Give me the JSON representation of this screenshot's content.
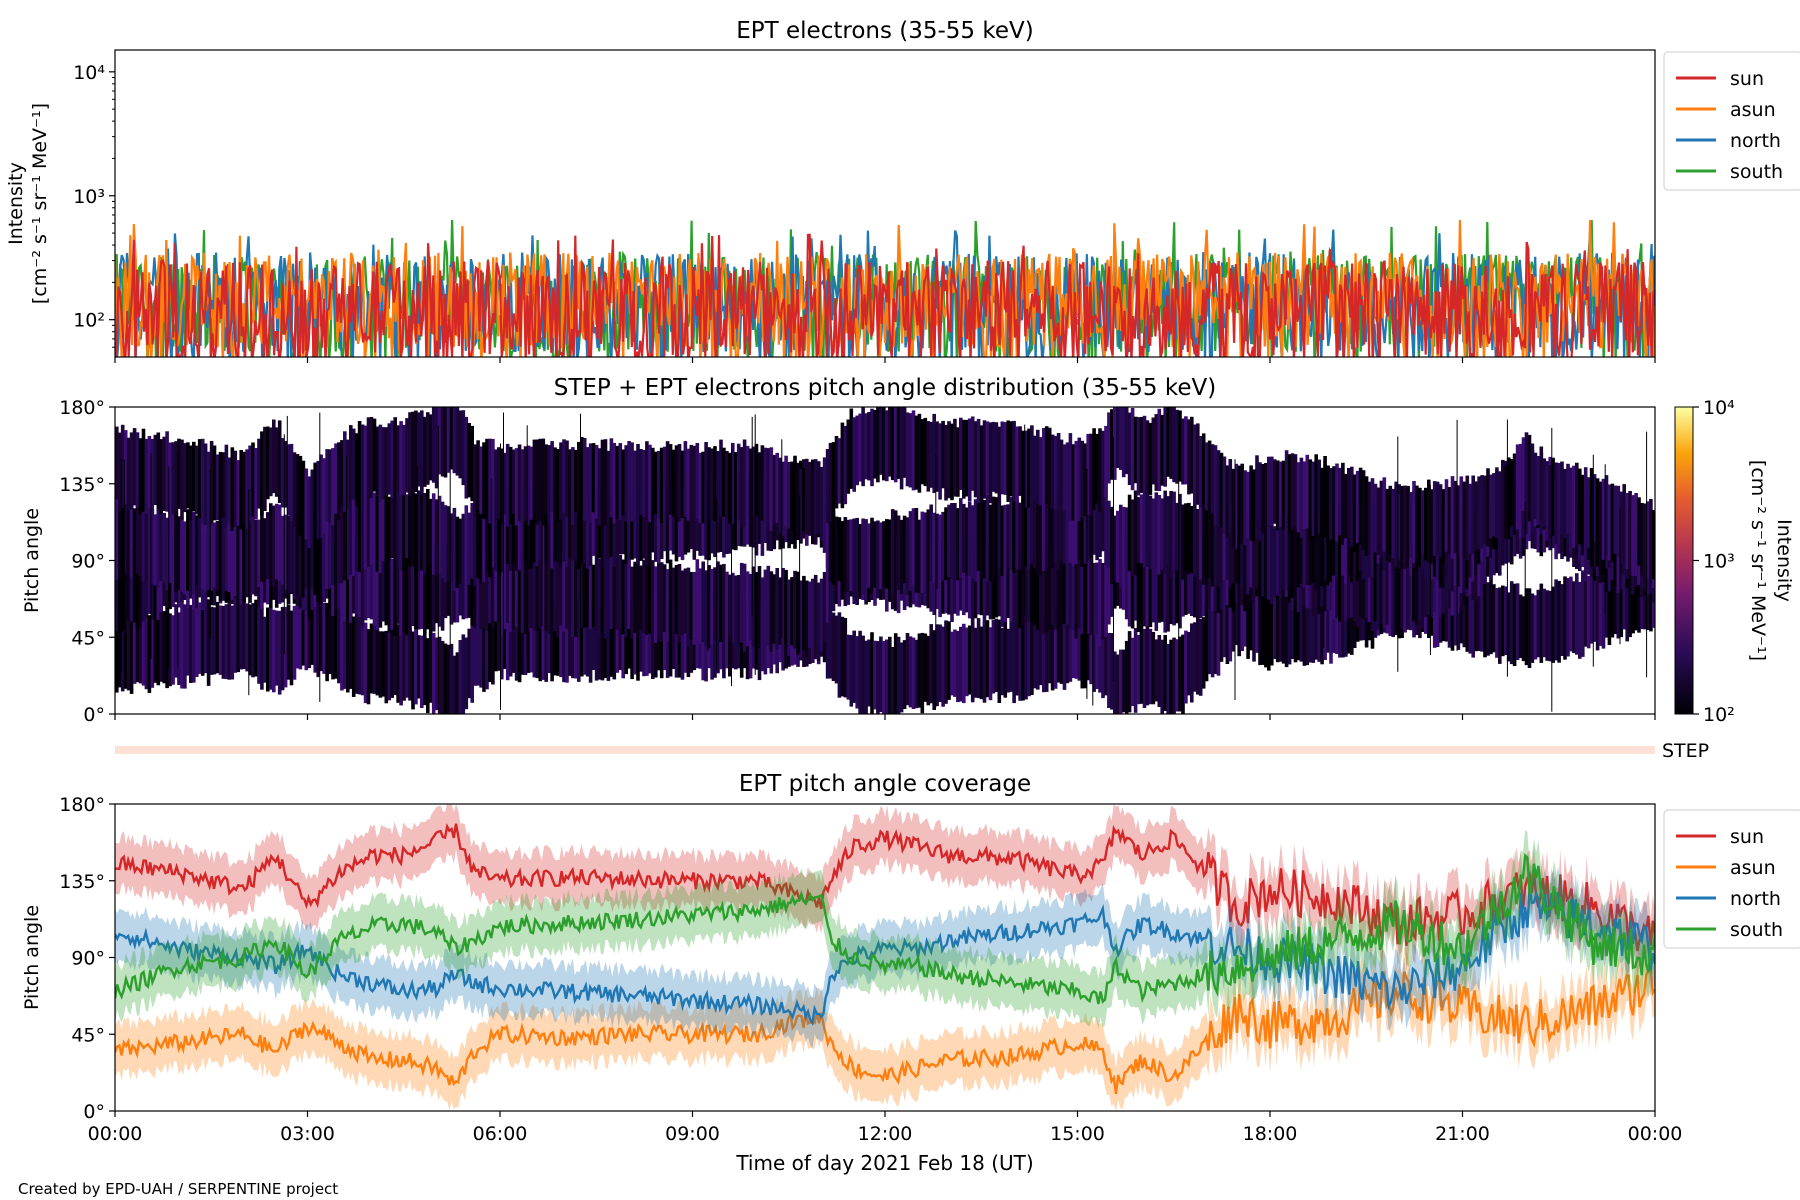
{
  "footer": {
    "credit": "Created by EPD-UAH / SERPENTINE project"
  },
  "chart_data": [
    {
      "type": "line",
      "title": "EPT electrons (35-55 keV)",
      "ylabel": "Intensity",
      "ylabel_units": "[cm⁻² s⁻¹ sr⁻¹ MeV⁻¹]",
      "yscale": "log",
      "ylim": [
        50,
        15000
      ],
      "yticks": [
        "10²",
        "10³",
        "10⁴"
      ],
      "xlim": [
        "00:00",
        "24:00"
      ],
      "legend_position": "outside-right-top",
      "series": [
        {
          "name": "sun",
          "color": "#d62728",
          "typical_range": [
            50,
            300
          ],
          "peak": 500
        },
        {
          "name": "asun",
          "color": "#ff7f0e",
          "typical_range": [
            60,
            350
          ],
          "peak": 640
        },
        {
          "name": "north",
          "color": "#1f77b4",
          "typical_range": [
            55,
            350
          ],
          "peak": 600
        },
        {
          "name": "south",
          "color": "#2ca02c",
          "typical_range": [
            55,
            340
          ],
          "peak": 650
        }
      ]
    },
    {
      "type": "heatmap",
      "title": "STEP + EPT electrons pitch angle distribution (35-55 keV)",
      "ylabel": "Pitch angle",
      "ylim": [
        0,
        180
      ],
      "yticks": [
        "0°",
        "45°",
        "90°",
        "135°",
        "180°"
      ],
      "xlim": [
        "00:00",
        "24:00"
      ],
      "colorbar": {
        "label": "Intensity",
        "units": "[cm⁻² s⁻¹ sr⁻¹ MeV⁻¹]",
        "scale": "log",
        "range": [
          100,
          10000
        ],
        "ticks": [
          "10²",
          "10³",
          "10⁴"
        ],
        "colormap": "inferno"
      }
    },
    {
      "type": "bar",
      "label": "STEP",
      "color": "#fde0d6"
    },
    {
      "type": "line",
      "title": "EPT pitch angle coverage",
      "ylabel": "Pitch angle",
      "xlabel": "Time of day 2021 Feb 18 (UT)",
      "ylim": [
        0,
        180
      ],
      "yticks": [
        "0°",
        "45°",
        "90°",
        "135°",
        "180°"
      ],
      "xticks": [
        "00:00",
        "03:00",
        "06:00",
        "09:00",
        "12:00",
        "15:00",
        "18:00",
        "21:00",
        "00:00"
      ],
      "xtick_hours": [
        0,
        3,
        6,
        9,
        12,
        15,
        18,
        21,
        24
      ],
      "legend_position": "outside-right-top",
      "band_halfwidth_deg": 15,
      "series": [
        {
          "name": "sun",
          "color": "#d62728",
          "hours": [
            0,
            1,
            2,
            2.5,
            3,
            3.5,
            4,
            4.5,
            5,
            5.3,
            5.6,
            6,
            7,
            8,
            9,
            10,
            10.5,
            11.0,
            11.15,
            11.5,
            12,
            12.5,
            13,
            14,
            15,
            15.4,
            15.6,
            16,
            16.5,
            17,
            17.5,
            18,
            19,
            20,
            21,
            22,
            23,
            24
          ],
          "values": [
            145,
            140,
            130,
            150,
            120,
            140,
            150,
            150,
            158,
            165,
            140,
            135,
            137,
            136,
            135,
            135,
            128,
            122,
            135,
            155,
            160,
            155,
            150,
            148,
            138,
            145,
            165,
            150,
            160,
            140,
            120,
            130,
            125,
            110,
            115,
            130,
            120,
            100
          ]
        },
        {
          "name": "asun",
          "color": "#ff7f0e",
          "hours": [
            0,
            1,
            2,
            2.5,
            3,
            3.5,
            4,
            4.5,
            5,
            5.3,
            5.6,
            6,
            7,
            8,
            9,
            10,
            10.5,
            11.0,
            11.15,
            11.5,
            12,
            12.5,
            13,
            14,
            15,
            15.4,
            15.6,
            16,
            16.5,
            17,
            17.5,
            18,
            19,
            20,
            21,
            22,
            23,
            24
          ],
          "values": [
            35,
            40,
            45,
            35,
            50,
            40,
            30,
            30,
            25,
            15,
            35,
            45,
            43,
            45,
            45,
            45,
            52,
            55,
            40,
            25,
            20,
            25,
            30,
            32,
            40,
            35,
            15,
            30,
            20,
            40,
            60,
            50,
            55,
            70,
            60,
            50,
            60,
            75
          ]
        },
        {
          "name": "north",
          "color": "#1f77b4",
          "hours": [
            0,
            1,
            2,
            2.5,
            3,
            3.5,
            4,
            4.5,
            5,
            5.3,
            5.6,
            6,
            7,
            8,
            9,
            10,
            10.5,
            11.0,
            11.15,
            11.5,
            12,
            12.5,
            13,
            14,
            15,
            15.4,
            15.6,
            16,
            16.5,
            17,
            17.5,
            18,
            19,
            20,
            21,
            22,
            23,
            24
          ],
          "values": [
            105,
            95,
            90,
            85,
            95,
            80,
            75,
            70,
            72,
            80,
            75,
            72,
            70,
            68,
            65,
            62,
            60,
            55,
            80,
            90,
            95,
            95,
            100,
            105,
            110,
            115,
            95,
            110,
            105,
            100,
            95,
            90,
            80,
            70,
            85,
            120,
            110,
            95
          ]
        },
        {
          "name": "south",
          "color": "#2ca02c",
          "hours": [
            0,
            1,
            2,
            2.5,
            3,
            3.5,
            4,
            4.5,
            5,
            5.3,
            5.6,
            6,
            7,
            8,
            9,
            10,
            10.5,
            11.0,
            11.15,
            11.5,
            12,
            12.5,
            13,
            14,
            15,
            15.4,
            15.6,
            16,
            16.5,
            17,
            17.5,
            18,
            19,
            20,
            21,
            22,
            23,
            24
          ],
          "values": [
            70,
            85,
            90,
            100,
            80,
            100,
            108,
            110,
            105,
            95,
            100,
            108,
            110,
            112,
            115,
            118,
            122,
            125,
            100,
            90,
            85,
            85,
            80,
            75,
            70,
            65,
            85,
            70,
            75,
            80,
            85,
            90,
            100,
            110,
            95,
            140,
            100,
            90
          ]
        }
      ]
    }
  ]
}
